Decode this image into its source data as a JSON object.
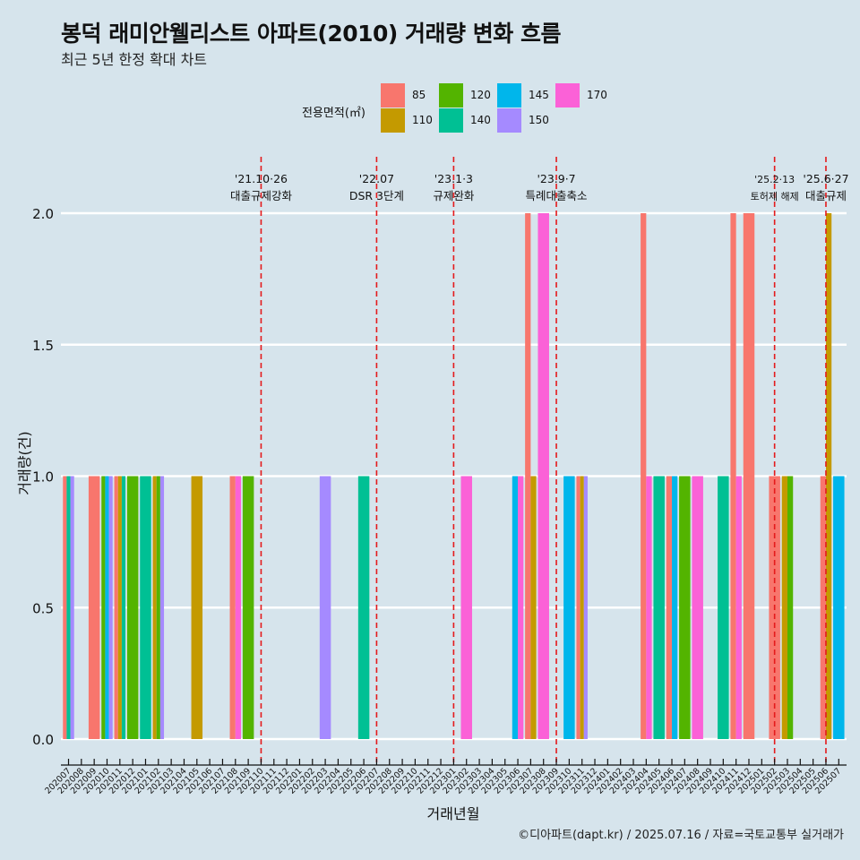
{
  "header": {
    "title": "봉덕 래미안웰리스트 아파트(2010) 거래량 변화 흐름",
    "subtitle": "최근 5년 한정 확대 차트"
  },
  "legend": {
    "title": "전용면적(㎡)",
    "items": [
      {
        "label": "85",
        "color": "#F8766D"
      },
      {
        "label": "110",
        "color": "#C49A00"
      },
      {
        "label": "120",
        "color": "#53B400"
      },
      {
        "label": "140",
        "color": "#00C094"
      },
      {
        "label": "145",
        "color": "#00B6EB"
      },
      {
        "label": "150",
        "color": "#A58AFF"
      },
      {
        "label": "170",
        "color": "#FB61D7"
      }
    ]
  },
  "caption": "©디아파트(dapt.kr) / 2025.07.16 / 자료=국토교통부 실거래가",
  "chart_data": {
    "type": "bar",
    "xlabel": "거래년월",
    "ylabel": "거래량(건)",
    "ylim": [
      0,
      2
    ],
    "yticks": [
      "0.0",
      "0.5",
      "1.0",
      "1.5",
      "2.0"
    ],
    "grid": true,
    "categories": [
      "202007",
      "202008",
      "202009",
      "202010",
      "202011",
      "202012",
      "202101",
      "202102",
      "202103",
      "202104",
      "202105",
      "202106",
      "202107",
      "202108",
      "202109",
      "202110",
      "202111",
      "202112",
      "202201",
      "202202",
      "202203",
      "202204",
      "202205",
      "202206",
      "202207",
      "202208",
      "202209",
      "202210",
      "202211",
      "202212",
      "202301",
      "202302",
      "202303",
      "202304",
      "202305",
      "202306",
      "202307",
      "202308",
      "202309",
      "202310",
      "202311",
      "202312",
      "202401",
      "202402",
      "202403",
      "202404",
      "202405",
      "202406",
      "202407",
      "202408",
      "202409",
      "202410",
      "202411",
      "202412",
      "202501",
      "202502",
      "202503",
      "202504",
      "202505",
      "202506",
      "202507"
    ],
    "bars": [
      {
        "month": "202007",
        "area": "85",
        "value": 1
      },
      {
        "month": "202007",
        "area": "140",
        "value": 1
      },
      {
        "month": "202007",
        "area": "150",
        "value": 1
      },
      {
        "month": "202009",
        "area": "85",
        "value": 1
      },
      {
        "month": "202010",
        "area": "120",
        "value": 1
      },
      {
        "month": "202010",
        "area": "145",
        "value": 1
      },
      {
        "month": "202010",
        "area": "150",
        "value": 1
      },
      {
        "month": "202011",
        "area": "85",
        "value": 1
      },
      {
        "month": "202011",
        "area": "110",
        "value": 1
      },
      {
        "month": "202011",
        "area": "140",
        "value": 1
      },
      {
        "month": "202012",
        "area": "120",
        "value": 1
      },
      {
        "month": "202101",
        "area": "140",
        "value": 1
      },
      {
        "month": "202102",
        "area": "110",
        "value": 1
      },
      {
        "month": "202102",
        "area": "120",
        "value": 1
      },
      {
        "month": "202102",
        "area": "150",
        "value": 1
      },
      {
        "month": "202105",
        "area": "110",
        "value": 1
      },
      {
        "month": "202108",
        "area": "85",
        "value": 1
      },
      {
        "month": "202108",
        "area": "170",
        "value": 1
      },
      {
        "month": "202109",
        "area": "120",
        "value": 1
      },
      {
        "month": "202203",
        "area": "150",
        "value": 1
      },
      {
        "month": "202206",
        "area": "140",
        "value": 1
      },
      {
        "month": "202302",
        "area": "170",
        "value": 1
      },
      {
        "month": "202306",
        "area": "145",
        "value": 1
      },
      {
        "month": "202306",
        "area": "170",
        "value": 1
      },
      {
        "month": "202307",
        "area": "85",
        "value": 2
      },
      {
        "month": "202307",
        "area": "110",
        "value": 1
      },
      {
        "month": "202308",
        "area": "170",
        "value": 2
      },
      {
        "month": "202310",
        "area": "145",
        "value": 1
      },
      {
        "month": "202311",
        "area": "85",
        "value": 1
      },
      {
        "month": "202311",
        "area": "110",
        "value": 1
      },
      {
        "month": "202311",
        "area": "150",
        "value": 1
      },
      {
        "month": "202404",
        "area": "85",
        "value": 2
      },
      {
        "month": "202404",
        "area": "170",
        "value": 1
      },
      {
        "month": "202405",
        "area": "140",
        "value": 1
      },
      {
        "month": "202406",
        "area": "85",
        "value": 1
      },
      {
        "month": "202406",
        "area": "145",
        "value": 1
      },
      {
        "month": "202407",
        "area": "120",
        "value": 1
      },
      {
        "month": "202408",
        "area": "170",
        "value": 1
      },
      {
        "month": "202410",
        "area": "140",
        "value": 1
      },
      {
        "month": "202411",
        "area": "85",
        "value": 2
      },
      {
        "month": "202411",
        "area": "170",
        "value": 1
      },
      {
        "month": "202412",
        "area": "85",
        "value": 2
      },
      {
        "month": "202502",
        "area": "85",
        "value": 1
      },
      {
        "month": "202503",
        "area": "110",
        "value": 1
      },
      {
        "month": "202503",
        "area": "120",
        "value": 1
      },
      {
        "month": "202506",
        "area": "85",
        "value": 1
      },
      {
        "month": "202506",
        "area": "110",
        "value": 2
      },
      {
        "month": "202507",
        "area": "145",
        "value": 1
      }
    ],
    "events": [
      {
        "month": "202110",
        "date": "'21.10·26",
        "label": "대출규제강화"
      },
      {
        "month": "202207",
        "date": "'22.07",
        "label": "DSR 3단계"
      },
      {
        "month": "202301",
        "date": "'23.1·3",
        "label": "규제완화"
      },
      {
        "month": "202309",
        "date": "'23.9·7",
        "label": "특례대출축소"
      },
      {
        "month": "202502",
        "date": "'25.2·13",
        "label": "토허제 해제"
      },
      {
        "month": "202506",
        "date": "'25.6·27",
        "label": "대출규제"
      }
    ]
  }
}
